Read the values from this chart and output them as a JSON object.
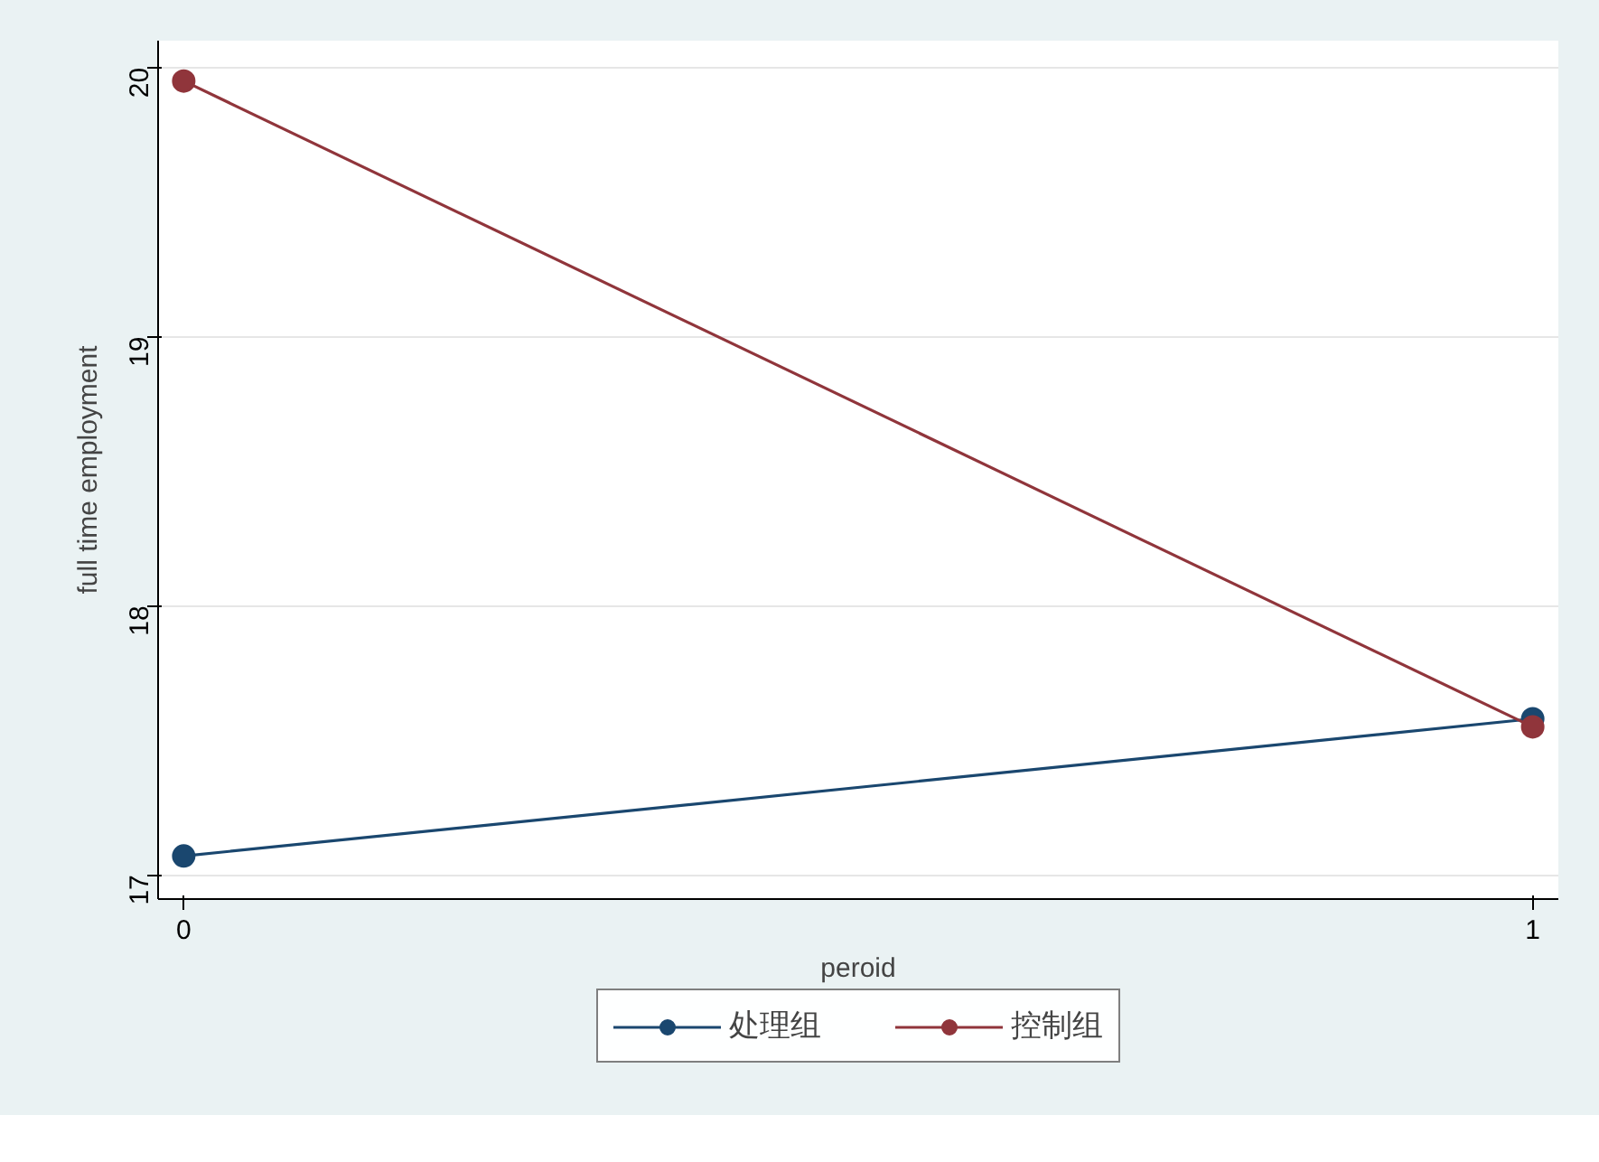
{
  "chart_data": {
    "type": "line",
    "xlabel": "peroid",
    "ylabel": "full time employment",
    "x": [
      0,
      1
    ],
    "xlim": [
      -0.019,
      1.019
    ],
    "xticks": [
      0,
      1
    ],
    "ylim": [
      16.91,
      20.1
    ],
    "yticks": [
      17,
      18,
      19,
      20
    ],
    "series": [
      {
        "name": "处理组",
        "color": "#1a476f",
        "values": [
          17.07,
          17.58
        ]
      },
      {
        "name": "控制组",
        "color": "#90353b",
        "values": [
          19.95,
          17.55
        ]
      }
    ],
    "marker": "circle",
    "line_style": "solid",
    "grid": "y",
    "legend": "bottom"
  }
}
